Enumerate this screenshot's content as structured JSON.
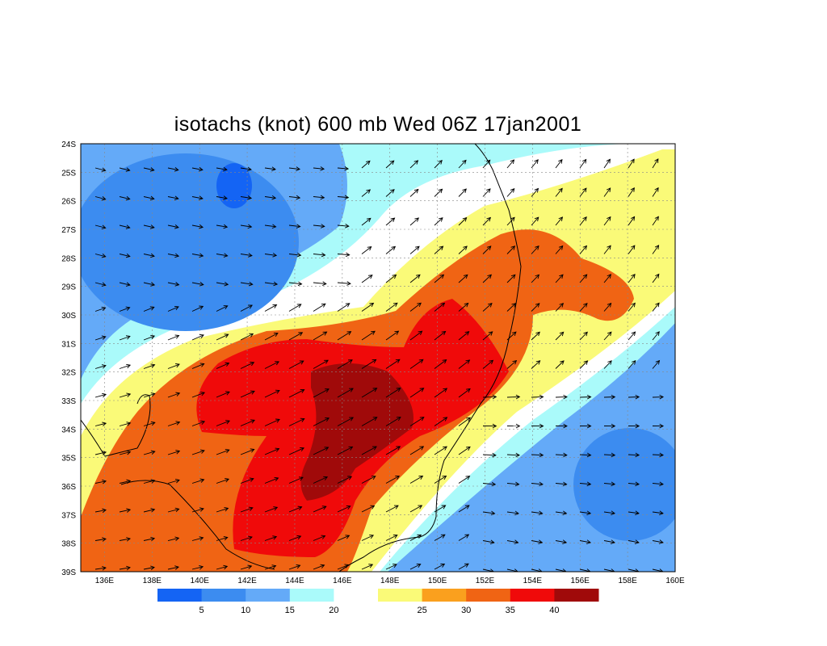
{
  "title": "isotachs (knot) 600 mb Wed 06Z 17jan2001",
  "map": {
    "lat_labels": [
      "24S",
      "25S",
      "26S",
      "27S",
      "28S",
      "29S",
      "30S",
      "31S",
      "32S",
      "33S",
      "34S",
      "35S",
      "36S",
      "37S",
      "38S",
      "39S"
    ],
    "lon_labels": [
      "136E",
      "138E",
      "140E",
      "142E",
      "144E",
      "146E",
      "148E",
      "150E",
      "152E",
      "154E",
      "156E",
      "158E",
      "160E"
    ],
    "lon_range": [
      135,
      160
    ],
    "lat_range": [
      -39,
      -24
    ],
    "gridlines": true
  },
  "legend": {
    "colors": [
      "#1464F4",
      "#3C8CF0",
      "#64AAF8",
      "#AAFAFA",
      "#FFFFFF",
      "#FAFA78",
      "#FAA01E",
      "#F06414",
      "#F00A0A",
      "#A00A0A"
    ],
    "labels": [
      "5",
      "10",
      "15",
      "20",
      "25",
      "30",
      "35",
      "40"
    ]
  },
  "chart_data": {
    "type": "heatmap",
    "title": "isotachs (knot) 600 mb Wed 06Z 17jan2001",
    "variable": "wind speed (knot) at 600 mb",
    "x_range": [
      135,
      160
    ],
    "y_range": [
      -39,
      -24
    ],
    "levels": [
      5,
      10,
      15,
      20,
      25,
      30,
      35,
      40
    ],
    "jet_core_max_region": {
      "lon": [
        145,
        148
      ],
      "lat": [
        -36.5,
        -32
      ],
      "speed_bin": ">40"
    }
  }
}
